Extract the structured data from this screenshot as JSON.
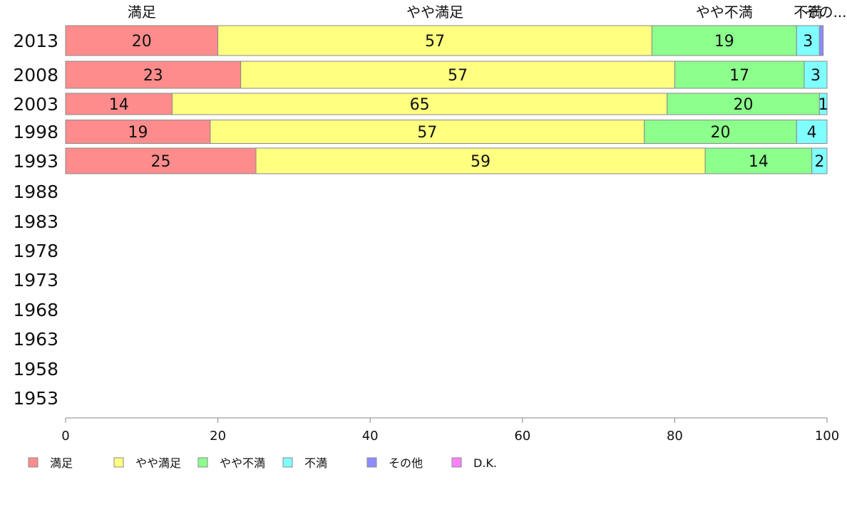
{
  "chart_data": {
    "type": "bar",
    "orientation": "horizontal",
    "stacked": true,
    "categories": [
      "2013",
      "2008",
      "2003",
      "1998",
      "1993",
      "1988",
      "1983",
      "1978",
      "1973",
      "1968",
      "1963",
      "1958",
      "1953"
    ],
    "series": [
      {
        "name": "満足",
        "color": "#ff8c8c",
        "values": [
          20,
          23,
          14,
          19,
          25,
          null,
          null,
          null,
          null,
          null,
          null,
          null,
          null
        ]
      },
      {
        "name": "やや満足",
        "color": "#ffff80",
        "values": [
          57,
          57,
          65,
          57,
          59,
          null,
          null,
          null,
          null,
          null,
          null,
          null,
          null
        ]
      },
      {
        "name": "やや不満",
        "color": "#8cff8c",
        "values": [
          19,
          17,
          20,
          20,
          14,
          null,
          null,
          null,
          null,
          null,
          null,
          null,
          null
        ]
      },
      {
        "name": "不満",
        "color": "#80ffff",
        "values": [
          3,
          3,
          1,
          4,
          2,
          null,
          null,
          null,
          null,
          null,
          null,
          null,
          null
        ]
      },
      {
        "name": "その他",
        "color": "#8c8cff",
        "values": [
          0.5,
          0,
          0,
          0,
          0,
          null,
          null,
          null,
          null,
          null,
          null,
          null,
          null
        ]
      },
      {
        "name": "D.K.",
        "color": "#ff80ff",
        "values": [
          0,
          0,
          0,
          0,
          0,
          null,
          null,
          null,
          null,
          null,
          null,
          null,
          null
        ]
      }
    ],
    "top_labels": [
      "満足",
      "やや満足",
      "やや不満",
      "不満",
      "その..."
    ],
    "x_ticks": [
      0,
      20,
      40,
      60,
      80,
      100
    ],
    "xlim": [
      0,
      100
    ],
    "grid": false,
    "legend_position": "bottom"
  }
}
